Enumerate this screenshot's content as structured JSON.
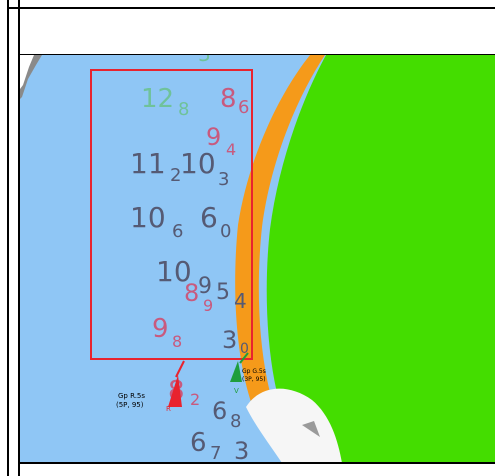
{
  "map": {
    "colors": {
      "water": "#8fc6f5",
      "land": "#44dd00",
      "shore": "#f59a1a",
      "highlight_box": "#e8232e",
      "sounding_dark": "#555a74",
      "sounding_pink": "#c85a7e",
      "sounding_green": "#6fc29a",
      "hazard": "#f6f6f6",
      "rock": "#8a8a8a"
    },
    "soundings": [
      {
        "id": "s12-8",
        "main": "12",
        "sub": "8",
        "color": "green"
      },
      {
        "id": "s8-6",
        "main": "8",
        "sub": "6",
        "color": "pink"
      },
      {
        "id": "s9-4",
        "main": "9",
        "sub": "4",
        "color": "pink"
      },
      {
        "id": "s11-2",
        "main": "11",
        "sub": "2",
        "color": "dark"
      },
      {
        "id": "s10-3",
        "main": "10",
        "sub": "3",
        "color": "dark"
      },
      {
        "id": "s10-6",
        "main": "10",
        "sub": "6",
        "color": "dark"
      },
      {
        "id": "s6-0",
        "main": "6",
        "sub": "0",
        "color": "dark"
      },
      {
        "id": "s10-top",
        "main": "10",
        "sub": "",
        "color": "dark"
      },
      {
        "id": "s8-9",
        "main": "8",
        "sub": "9",
        "color": "pink"
      },
      {
        "id": "s9-5",
        "main": "9",
        "sub": "5",
        "color": "dark"
      },
      {
        "id": "s4",
        "main": "4",
        "sub": "",
        "color": "dark"
      },
      {
        "id": "s9-8",
        "main": "9",
        "sub": "8",
        "color": "pink"
      },
      {
        "id": "s3-0",
        "main": "3",
        "sub": "0",
        "color": "dark"
      },
      {
        "id": "s8-2",
        "main": "8",
        "sub": "2",
        "color": "pink"
      },
      {
        "id": "s6-8",
        "main": "6",
        "sub": "8",
        "color": "dark"
      },
      {
        "id": "s6-7",
        "main": "6",
        "sub": "7",
        "color": "dark"
      },
      {
        "id": "s3-bottom",
        "main": "3",
        "sub": "",
        "color": "dark"
      }
    ],
    "lights": [
      {
        "id": "light-red",
        "line1": "Gp R.5s",
        "line2": "(5P, 95)",
        "tag": "R",
        "color": "#e8232e"
      },
      {
        "id": "light-green",
        "line1": "Gp G.5s",
        "line2": "(3P, 95)",
        "tag": "V",
        "color": "#1f9e3c"
      }
    ],
    "partial_top_digit": "3"
  }
}
